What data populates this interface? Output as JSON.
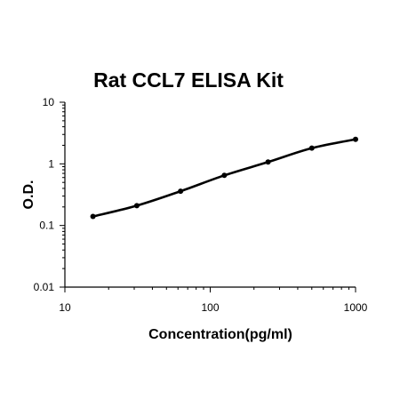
{
  "chart_data": {
    "type": "line",
    "title": "Rat CCL7 ELISA Kit",
    "xlabel": "Concentration(pg/ml)",
    "ylabel": "O.D.",
    "x_scale": "log",
    "y_scale": "log",
    "xlim": [
      10,
      1000
    ],
    "ylim": [
      0.01,
      10
    ],
    "x_ticks": [
      "10",
      "100",
      "1000"
    ],
    "y_ticks": [
      "0.01",
      "0.1",
      "1",
      "10"
    ],
    "grid": false,
    "legend": "none",
    "series": [
      {
        "x": [
          15.6,
          31.25,
          62.5,
          125,
          250,
          500,
          1000
        ],
        "y": [
          0.14,
          0.21,
          0.36,
          0.65,
          1.07,
          1.8,
          2.5
        ]
      }
    ]
  }
}
